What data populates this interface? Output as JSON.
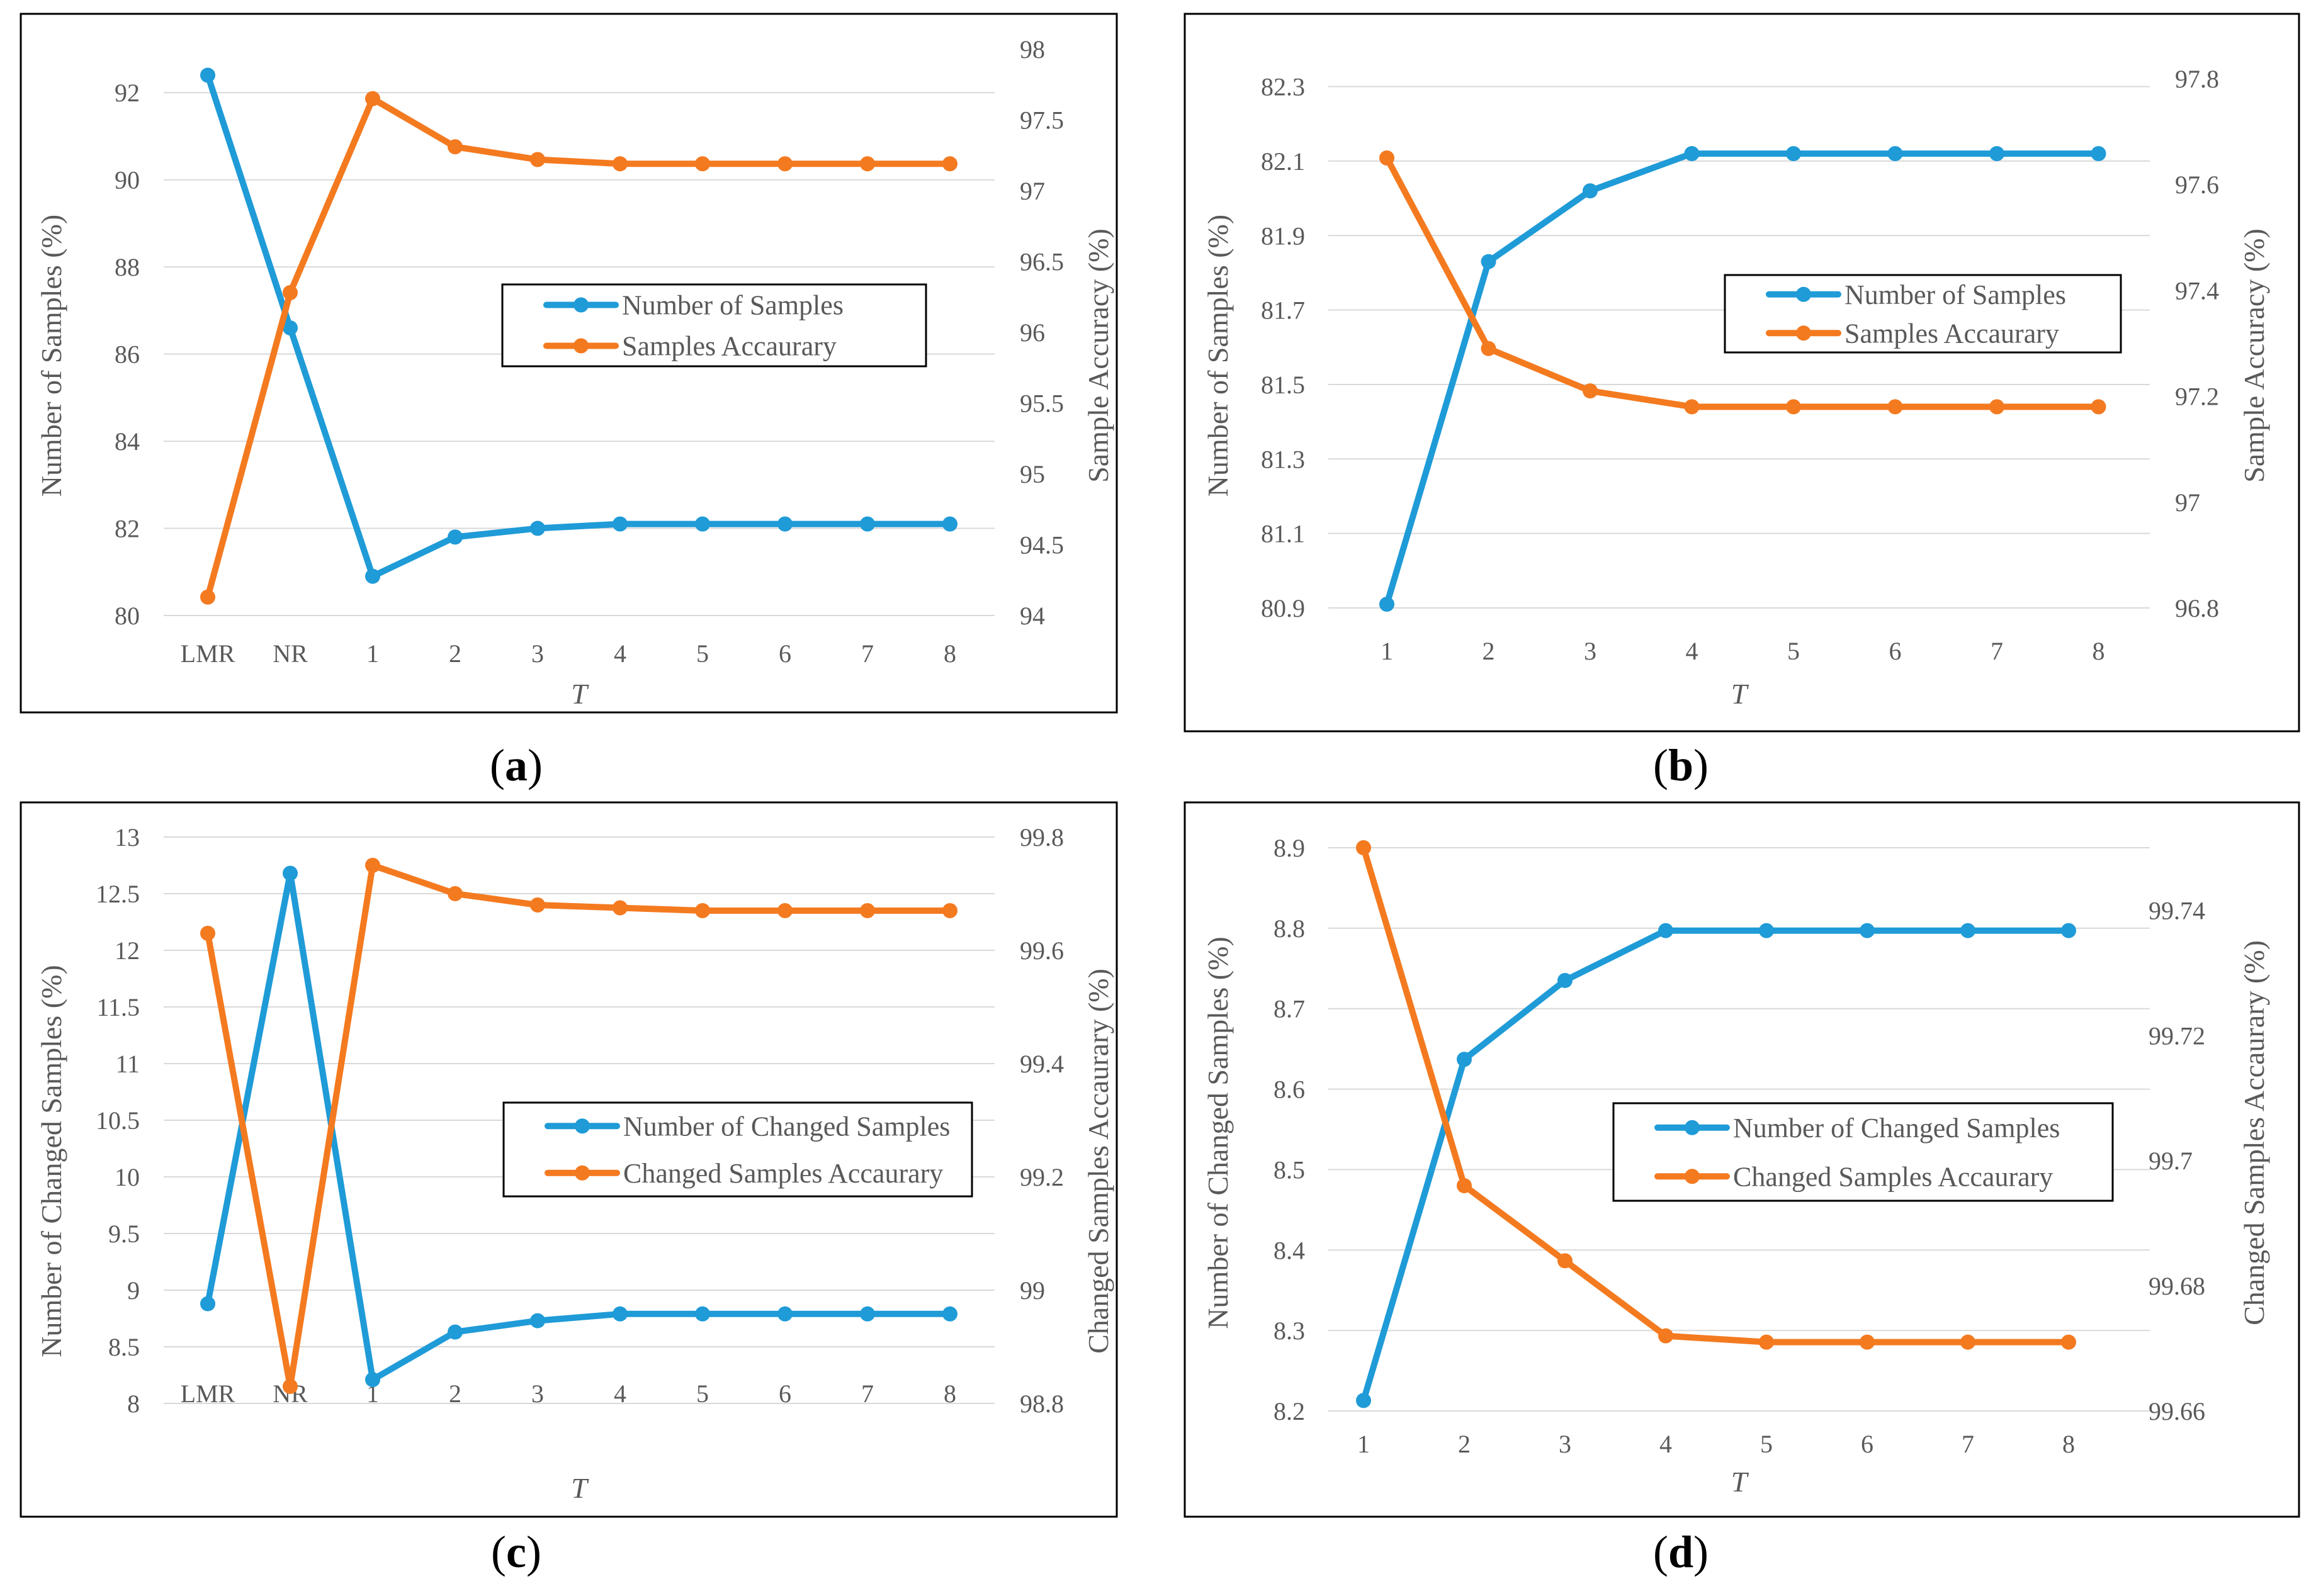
{
  "colors": {
    "series1": "#1F9BD7",
    "series2": "#F47A20",
    "grid": "#D9D9D9",
    "text": "#595959",
    "frame": "#000000"
  },
  "chart_data": [
    {
      "type": "line",
      "caption": "a",
      "categories": [
        "LMR",
        "NR",
        "1",
        "2",
        "3",
        "4",
        "5",
        "6",
        "7",
        "8"
      ],
      "xlabel": "T",
      "ylabel": "Number of Samples  (%)",
      "y2label": "Sample Accuracy  (%)",
      "ylim": [
        80,
        93
      ],
      "yticks": [
        80,
        82,
        84,
        86,
        88,
        90,
        92
      ],
      "y2lim": [
        94,
        98
      ],
      "y2ticks": [
        94,
        94.5,
        95,
        95.5,
        96,
        96.5,
        97,
        97.5,
        98
      ],
      "legend_position": "center-right",
      "series": [
        {
          "name": "Number of Samples",
          "axis": "left",
          "values": [
            92.4,
            86.6,
            80.9,
            81.8,
            82.0,
            82.1,
            82.1,
            82.1,
            82.1,
            82.1
          ]
        },
        {
          "name": "Samples Accaurary",
          "axis": "right",
          "values": [
            94.13,
            96.28,
            97.65,
            97.31,
            97.22,
            97.19,
            97.19,
            97.19,
            97.19,
            97.19
          ]
        }
      ]
    },
    {
      "type": "line",
      "caption": "b",
      "categories": [
        "1",
        "2",
        "3",
        "4",
        "5",
        "6",
        "7",
        "8"
      ],
      "xlabel": "T",
      "ylabel": "Number of Samples  (%)",
      "y2label": "Sample Accuracy  (%)",
      "ylim": [
        80.9,
        82.35
      ],
      "yticks": [
        80.9,
        81.1,
        81.3,
        81.5,
        81.7,
        81.9,
        82.1,
        82.3
      ],
      "y2lim": [
        96.8,
        97.82
      ],
      "y2ticks": [
        96.8,
        97,
        97.2,
        97.4,
        97.6,
        97.8
      ],
      "legend_position": "center-right",
      "series": [
        {
          "name": "Number of Samples",
          "axis": "left",
          "values": [
            80.91,
            81.83,
            82.02,
            82.12,
            82.12,
            82.12,
            82.12,
            82.12
          ]
        },
        {
          "name": "Samples Accaurary",
          "axis": "right",
          "values": [
            97.65,
            97.29,
            97.21,
            97.18,
            97.18,
            97.18,
            97.18,
            97.18
          ]
        }
      ]
    },
    {
      "type": "line",
      "caption": "c",
      "categories": [
        "LMR",
        "NR",
        "1",
        "2",
        "3",
        "4",
        "5",
        "6",
        "7",
        "8"
      ],
      "xlabel": "T",
      "ylabel": "Number of Changed Samples  (%)",
      "y2label": "Changed Samples Accaurary  (%)",
      "ylim": [
        8,
        13
      ],
      "yticks": [
        8,
        8.5,
        9,
        9.5,
        10,
        10.5,
        11,
        11.5,
        12,
        12.5,
        13
      ],
      "y2lim": [
        98.8,
        99.8
      ],
      "y2ticks": [
        98.8,
        99,
        99.2,
        99.4,
        99.6,
        99.8
      ],
      "legend_position": "center-right",
      "series": [
        {
          "name": "Number of Changed Samples",
          "axis": "left",
          "values": [
            8.88,
            12.68,
            8.21,
            8.63,
            8.73,
            8.79,
            8.79,
            8.79,
            8.79,
            8.79
          ]
        },
        {
          "name": "Changed Samples Accaurary",
          "axis": "right",
          "values": [
            99.63,
            98.83,
            99.75,
            99.7,
            99.68,
            99.675,
            99.67,
            99.67,
            99.67,
            99.67
          ]
        }
      ]
    },
    {
      "type": "line",
      "caption": "d",
      "categories": [
        "1",
        "2",
        "3",
        "4",
        "5",
        "6",
        "7",
        "8"
      ],
      "xlabel": "T",
      "ylabel": "Number of Changed Samples  (%)",
      "y2label": "Changed Samples Accaurary  (%)",
      "ylim": [
        8.2,
        8.9
      ],
      "yticks": [
        8.2,
        8.3,
        8.4,
        8.5,
        8.6,
        8.7,
        8.8,
        8.9
      ],
      "y2lim": [
        99.66,
        99.75
      ],
      "y2ticks": [
        99.66,
        99.68,
        99.7,
        99.72,
        99.74
      ],
      "legend_position": "center-right",
      "series": [
        {
          "name": "Number of Changed Samples",
          "axis": "left",
          "values": [
            8.213,
            8.637,
            8.735,
            8.797,
            8.797,
            8.797,
            8.797,
            8.797
          ]
        },
        {
          "name": "Changed Samples Accaurary",
          "axis": "right",
          "values": [
            99.75,
            99.696,
            99.684,
            99.672,
            99.671,
            99.671,
            99.671,
            99.671
          ]
        }
      ]
    }
  ]
}
